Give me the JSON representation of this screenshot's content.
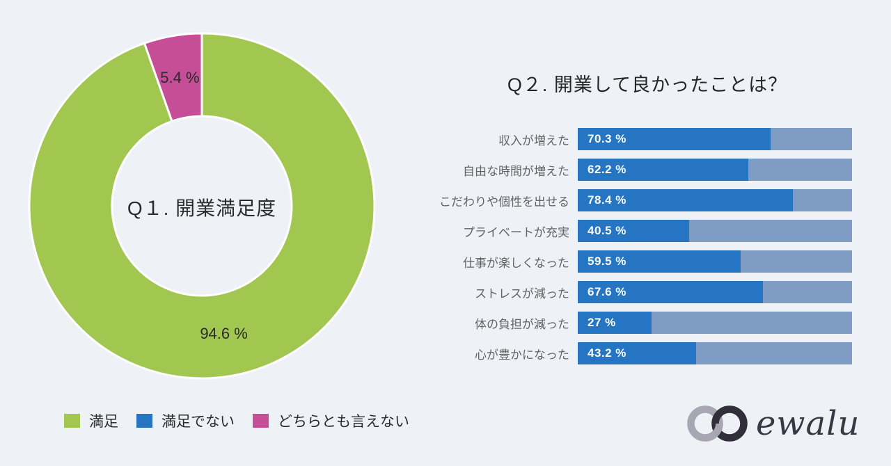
{
  "page": {
    "background": "#eef2f7"
  },
  "chart_data": [
    {
      "type": "pie",
      "variant": "donut",
      "title": "Q１. 開業満足度",
      "start_angle_deg": 0,
      "legend_position": "bottom-left",
      "slices": [
        {
          "name": "manzoku",
          "label": "満足",
          "value": 94.6,
          "display_label": "94.6 %",
          "color": "#a1c751"
        },
        {
          "name": "dochiratomo-ienai",
          "label": "どちらとも言えない",
          "value": 5.4,
          "display_label": "5.4 %",
          "color": "#c54e97"
        }
      ]
    },
    {
      "type": "bar",
      "orientation": "horizontal",
      "title": "Q２. 開業して良かったことは？",
      "xlim": [
        0,
        100
      ],
      "grid": false,
      "categories": [
        "収入が増えた",
        "自由な時間が増えた",
        "こだわりや個性を出せる",
        "プライベートが充実",
        "仕事が楽しくなった",
        "ストレスが減った",
        "体の負担が減った",
        "心が豊かになった"
      ],
      "values": [
        70.3,
        62.2,
        78.4,
        40.5,
        59.5,
        67.6,
        27,
        43.2
      ],
      "display_labels": [
        "70.3 %",
        "62.2 %",
        "78.4 %",
        "40.5 %",
        "59.5 %",
        "67.6 %",
        "27 %",
        "43.2 %"
      ],
      "bar_color": "#2575c3",
      "track_color": "#7f9dc4"
    }
  ],
  "legend": {
    "items": [
      {
        "label": "満足",
        "color": "#a1c751"
      },
      {
        "label": "満足でない",
        "color": "#2575c3"
      },
      {
        "label": "どちらとも言えない",
        "color": "#c54e97"
      }
    ]
  },
  "logo": {
    "text": "ewalu",
    "icon": "infinity-icon",
    "icon_colors": {
      "left": "#a8a6b3",
      "right": "#312f3a"
    },
    "text_color": "#3a3844"
  }
}
